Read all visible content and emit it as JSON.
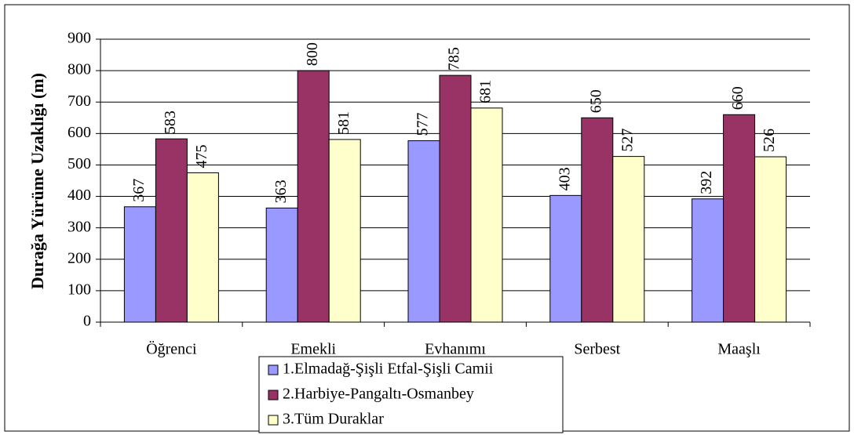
{
  "chart_data": {
    "type": "bar",
    "categories": [
      "Öğrenci",
      "Emekli",
      "Evhanımı",
      "Serbest",
      "Maaşlı"
    ],
    "y_label": "Durağa Yürüme Uzaklığı (m)",
    "series": [
      {
        "name": "1.Elmadağ-Şişli Etfal-Şişli Camii",
        "color": "#9999ff",
        "values": [
          367,
          363,
          577,
          403,
          392
        ]
      },
      {
        "name": "2.Harbiye-Pangaltı-Osmanbey",
        "color": "#993366",
        "values": [
          583,
          800,
          785,
          650,
          660
        ]
      },
      {
        "name": "3.Tüm Duraklar",
        "color": "#ffffcc",
        "values": [
          475,
          581,
          681,
          527,
          526
        ]
      }
    ],
    "ylim": [
      0,
      900
    ],
    "yticks": [
      0,
      100,
      200,
      300,
      400,
      500,
      600,
      700,
      800,
      900
    ],
    "grid": true
  }
}
